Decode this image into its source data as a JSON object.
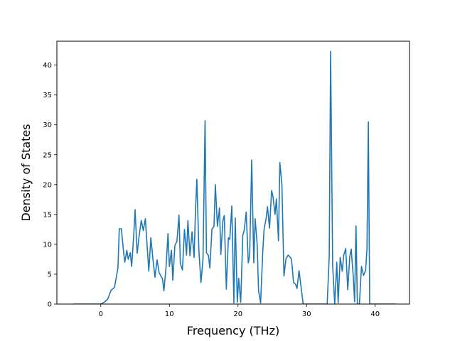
{
  "chart_data": {
    "type": "line",
    "title": "",
    "xlabel": "Frequency (THz)",
    "ylabel": "Density of States",
    "xlim": [
      -6.4,
      45.0
    ],
    "ylim": [
      0,
      44
    ],
    "xticks": [
      0,
      10,
      20,
      30,
      40
    ],
    "yticks": [
      0,
      5,
      10,
      15,
      20,
      25,
      30,
      35,
      40
    ],
    "grid": false,
    "series": [
      {
        "color": "#1f77b4",
        "points": [
          [
            -4.0,
            0
          ],
          [
            0.0,
            0
          ],
          [
            0.5,
            0.3
          ],
          [
            1.0,
            0.8
          ],
          [
            1.5,
            2.3
          ],
          [
            2.0,
            2.8
          ],
          [
            2.5,
            6.0
          ],
          [
            2.7,
            12.6
          ],
          [
            3.0,
            12.6
          ],
          [
            3.3,
            9.0
          ],
          [
            3.5,
            7.0
          ],
          [
            3.8,
            9.0
          ],
          [
            4.0,
            7.5
          ],
          [
            4.3,
            8.6
          ],
          [
            4.5,
            6.3
          ],
          [
            4.8,
            11.5
          ],
          [
            5.0,
            15.8
          ],
          [
            5.3,
            8.5
          ],
          [
            5.6,
            11.5
          ],
          [
            5.9,
            14.0
          ],
          [
            6.2,
            12.3
          ],
          [
            6.5,
            14.3
          ],
          [
            6.8,
            9.0
          ],
          [
            7.0,
            5.5
          ],
          [
            7.3,
            11.1
          ],
          [
            7.6,
            7.5
          ],
          [
            7.9,
            4.5
          ],
          [
            8.2,
            7.4
          ],
          [
            8.5,
            5.3
          ],
          [
            8.8,
            4.6
          ],
          [
            9.0,
            4.2
          ],
          [
            9.2,
            2.2
          ],
          [
            9.5,
            6.0
          ],
          [
            9.8,
            11.8
          ],
          [
            10.0,
            6.3
          ],
          [
            10.3,
            9.0
          ],
          [
            10.5,
            4.0
          ],
          [
            10.8,
            9.8
          ],
          [
            11.1,
            10.5
          ],
          [
            11.4,
            14.9
          ],
          [
            11.6,
            6.8
          ],
          [
            11.9,
            5.7
          ],
          [
            12.2,
            12.5
          ],
          [
            12.5,
            8.2
          ],
          [
            12.7,
            14.0
          ],
          [
            13.0,
            8.1
          ],
          [
            13.3,
            12.1
          ],
          [
            13.6,
            7.8
          ],
          [
            13.8,
            15.4
          ],
          [
            14.0,
            20.9
          ],
          [
            14.3,
            9.0
          ],
          [
            14.6,
            3.6
          ],
          [
            14.9,
            7.5
          ],
          [
            15.2,
            30.7
          ],
          [
            15.4,
            8.6
          ],
          [
            15.7,
            8.1
          ],
          [
            15.9,
            6.0
          ],
          [
            16.2,
            12.5
          ],
          [
            16.5,
            13.0
          ],
          [
            16.7,
            20.0
          ],
          [
            17.0,
            13.0
          ],
          [
            17.3,
            16.1
          ],
          [
            17.5,
            8.3
          ],
          [
            17.8,
            14.0
          ],
          [
            18.0,
            14.8
          ],
          [
            18.3,
            2.5
          ],
          [
            18.6,
            11.1
          ],
          [
            18.8,
            10.8
          ],
          [
            19.1,
            16.4
          ],
          [
            19.4,
            0.2
          ],
          [
            19.6,
            14.4
          ],
          [
            19.9,
            0.3
          ],
          [
            20.1,
            4.3
          ],
          [
            20.4,
            0.3
          ],
          [
            20.7,
            11.5
          ],
          [
            20.9,
            12.3
          ],
          [
            21.2,
            15.4
          ],
          [
            21.5,
            6.9
          ],
          [
            21.7,
            8.1
          ],
          [
            22.0,
            24.1
          ],
          [
            22.3,
            6.9
          ],
          [
            22.5,
            14.3
          ],
          [
            22.8,
            9.9
          ],
          [
            23.0,
            2.2
          ],
          [
            23.3,
            0.2
          ],
          [
            23.6,
            8.5
          ],
          [
            23.8,
            12.5
          ],
          [
            24.1,
            14.3
          ],
          [
            24.3,
            16.3
          ],
          [
            24.6,
            12.7
          ],
          [
            24.9,
            19.0
          ],
          [
            25.1,
            18.0
          ],
          [
            25.4,
            15.0
          ],
          [
            25.6,
            17.6
          ],
          [
            25.9,
            10.6
          ],
          [
            26.1,
            23.7
          ],
          [
            26.4,
            20.0
          ],
          [
            26.7,
            4.7
          ],
          [
            27.0,
            7.6
          ],
          [
            27.3,
            8.2
          ],
          [
            27.5,
            8.0
          ],
          [
            27.8,
            7.5
          ],
          [
            28.1,
            3.6
          ],
          [
            28.4,
            3.3
          ],
          [
            28.6,
            2.6
          ],
          [
            28.9,
            5.6
          ],
          [
            29.2,
            2.8
          ],
          [
            29.5,
            0
          ],
          [
            33.0,
            0
          ],
          [
            33.3,
            8.0
          ],
          [
            33.5,
            42.3
          ],
          [
            33.8,
            6.5
          ],
          [
            34.1,
            0
          ],
          [
            34.4,
            7.0
          ],
          [
            34.6,
            0.2
          ],
          [
            34.9,
            7.8
          ],
          [
            35.2,
            5.5
          ],
          [
            35.4,
            8.1
          ],
          [
            35.7,
            9.3
          ],
          [
            36.0,
            2.4
          ],
          [
            36.3,
            8.0
          ],
          [
            36.5,
            9.2
          ],
          [
            36.8,
            4.7
          ],
          [
            37.0,
            0.4
          ],
          [
            37.2,
            13.1
          ],
          [
            37.4,
            0
          ],
          [
            37.7,
            0
          ],
          [
            38.0,
            6.3
          ],
          [
            38.3,
            4.8
          ],
          [
            38.6,
            5.6
          ],
          [
            38.8,
            9.2
          ],
          [
            39.0,
            30.5
          ],
          [
            39.2,
            0
          ],
          [
            43.0,
            0
          ]
        ]
      }
    ]
  }
}
